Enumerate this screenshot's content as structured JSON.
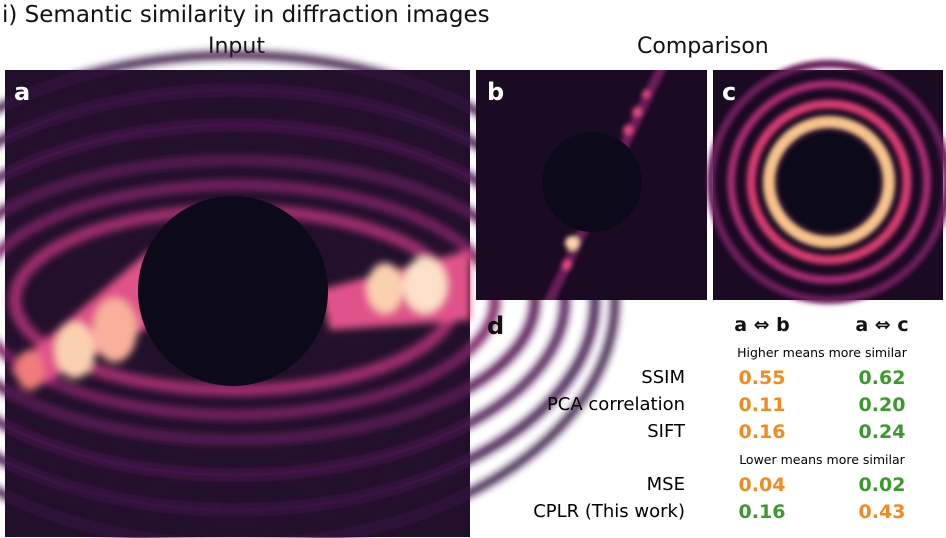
{
  "header": {
    "title": "i) Semantic similarity in diffraction images",
    "input_label": "Input",
    "comparison_label": "Comparison"
  },
  "panels": {
    "a": "a",
    "b": "b",
    "c": "c",
    "d": "d"
  },
  "table": {
    "columns": [
      "a ⇔ b",
      "a ⇔ c"
    ],
    "groups": [
      {
        "note": "Higher means more similar",
        "rows": [
          {
            "label": "SSIM",
            "cells": [
              {
                "text": "0.55",
                "color": "#f28a1e"
              },
              {
                "text": "0.62",
                "color": "#3a9a2c"
              }
            ]
          },
          {
            "label": "PCA correlation",
            "cells": [
              {
                "text": "0.11",
                "color": "#f28a1e"
              },
              {
                "text": "0.20",
                "color": "#3a9a2c"
              }
            ]
          },
          {
            "label": "SIFT",
            "cells": [
              {
                "text": "0.16",
                "color": "#f28a1e"
              },
              {
                "text": "0.24",
                "color": "#3a9a2c"
              }
            ]
          }
        ]
      },
      {
        "note": "Lower means more similar",
        "rows": [
          {
            "label": "MSE",
            "cells": [
              {
                "text": "0.04",
                "color": "#f28a1e"
              },
              {
                "text": "0.02",
                "color": "#3a9a2c"
              }
            ]
          },
          {
            "label": "CPLR (This work)",
            "cells": [
              {
                "text": "0.16",
                "color": "#3a9a2c"
              },
              {
                "text": "0.43",
                "color": "#f28a1e"
              }
            ]
          }
        ]
      }
    ]
  }
}
